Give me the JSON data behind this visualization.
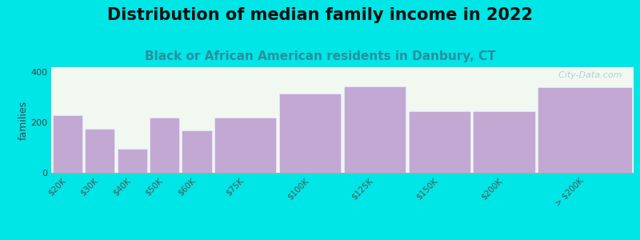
{
  "title": "Distribution of median family income in 2022",
  "subtitle": "Black or African American residents in Danbury, CT",
  "ylabel": "families",
  "background_color": "#00e5e5",
  "plot_bg_color": "#f0f8f0",
  "bar_color": "#c4a8d4",
  "bar_edge_color": "#e8e8ff",
  "categories": [
    "$20K",
    "$30K",
    "$40K",
    "$50K",
    "$60K",
    "$75K",
    "$100K",
    "$125K",
    "$150K",
    "$200K",
    "> $200K"
  ],
  "left_edges": [
    0,
    1,
    2,
    3,
    4,
    5,
    7,
    9,
    11,
    13,
    15
  ],
  "widths": [
    1,
    1,
    1,
    1,
    1,
    2,
    2,
    2,
    2,
    2,
    3
  ],
  "values": [
    230,
    175,
    95,
    220,
    170,
    220,
    315,
    345,
    245,
    245,
    340
  ],
  "ylim": [
    0,
    420
  ],
  "yticks": [
    0,
    200,
    400
  ],
  "title_fontsize": 15,
  "subtitle_fontsize": 11,
  "subtitle_color": "#2a8fa0",
  "watermark": "  City-Data.com"
}
